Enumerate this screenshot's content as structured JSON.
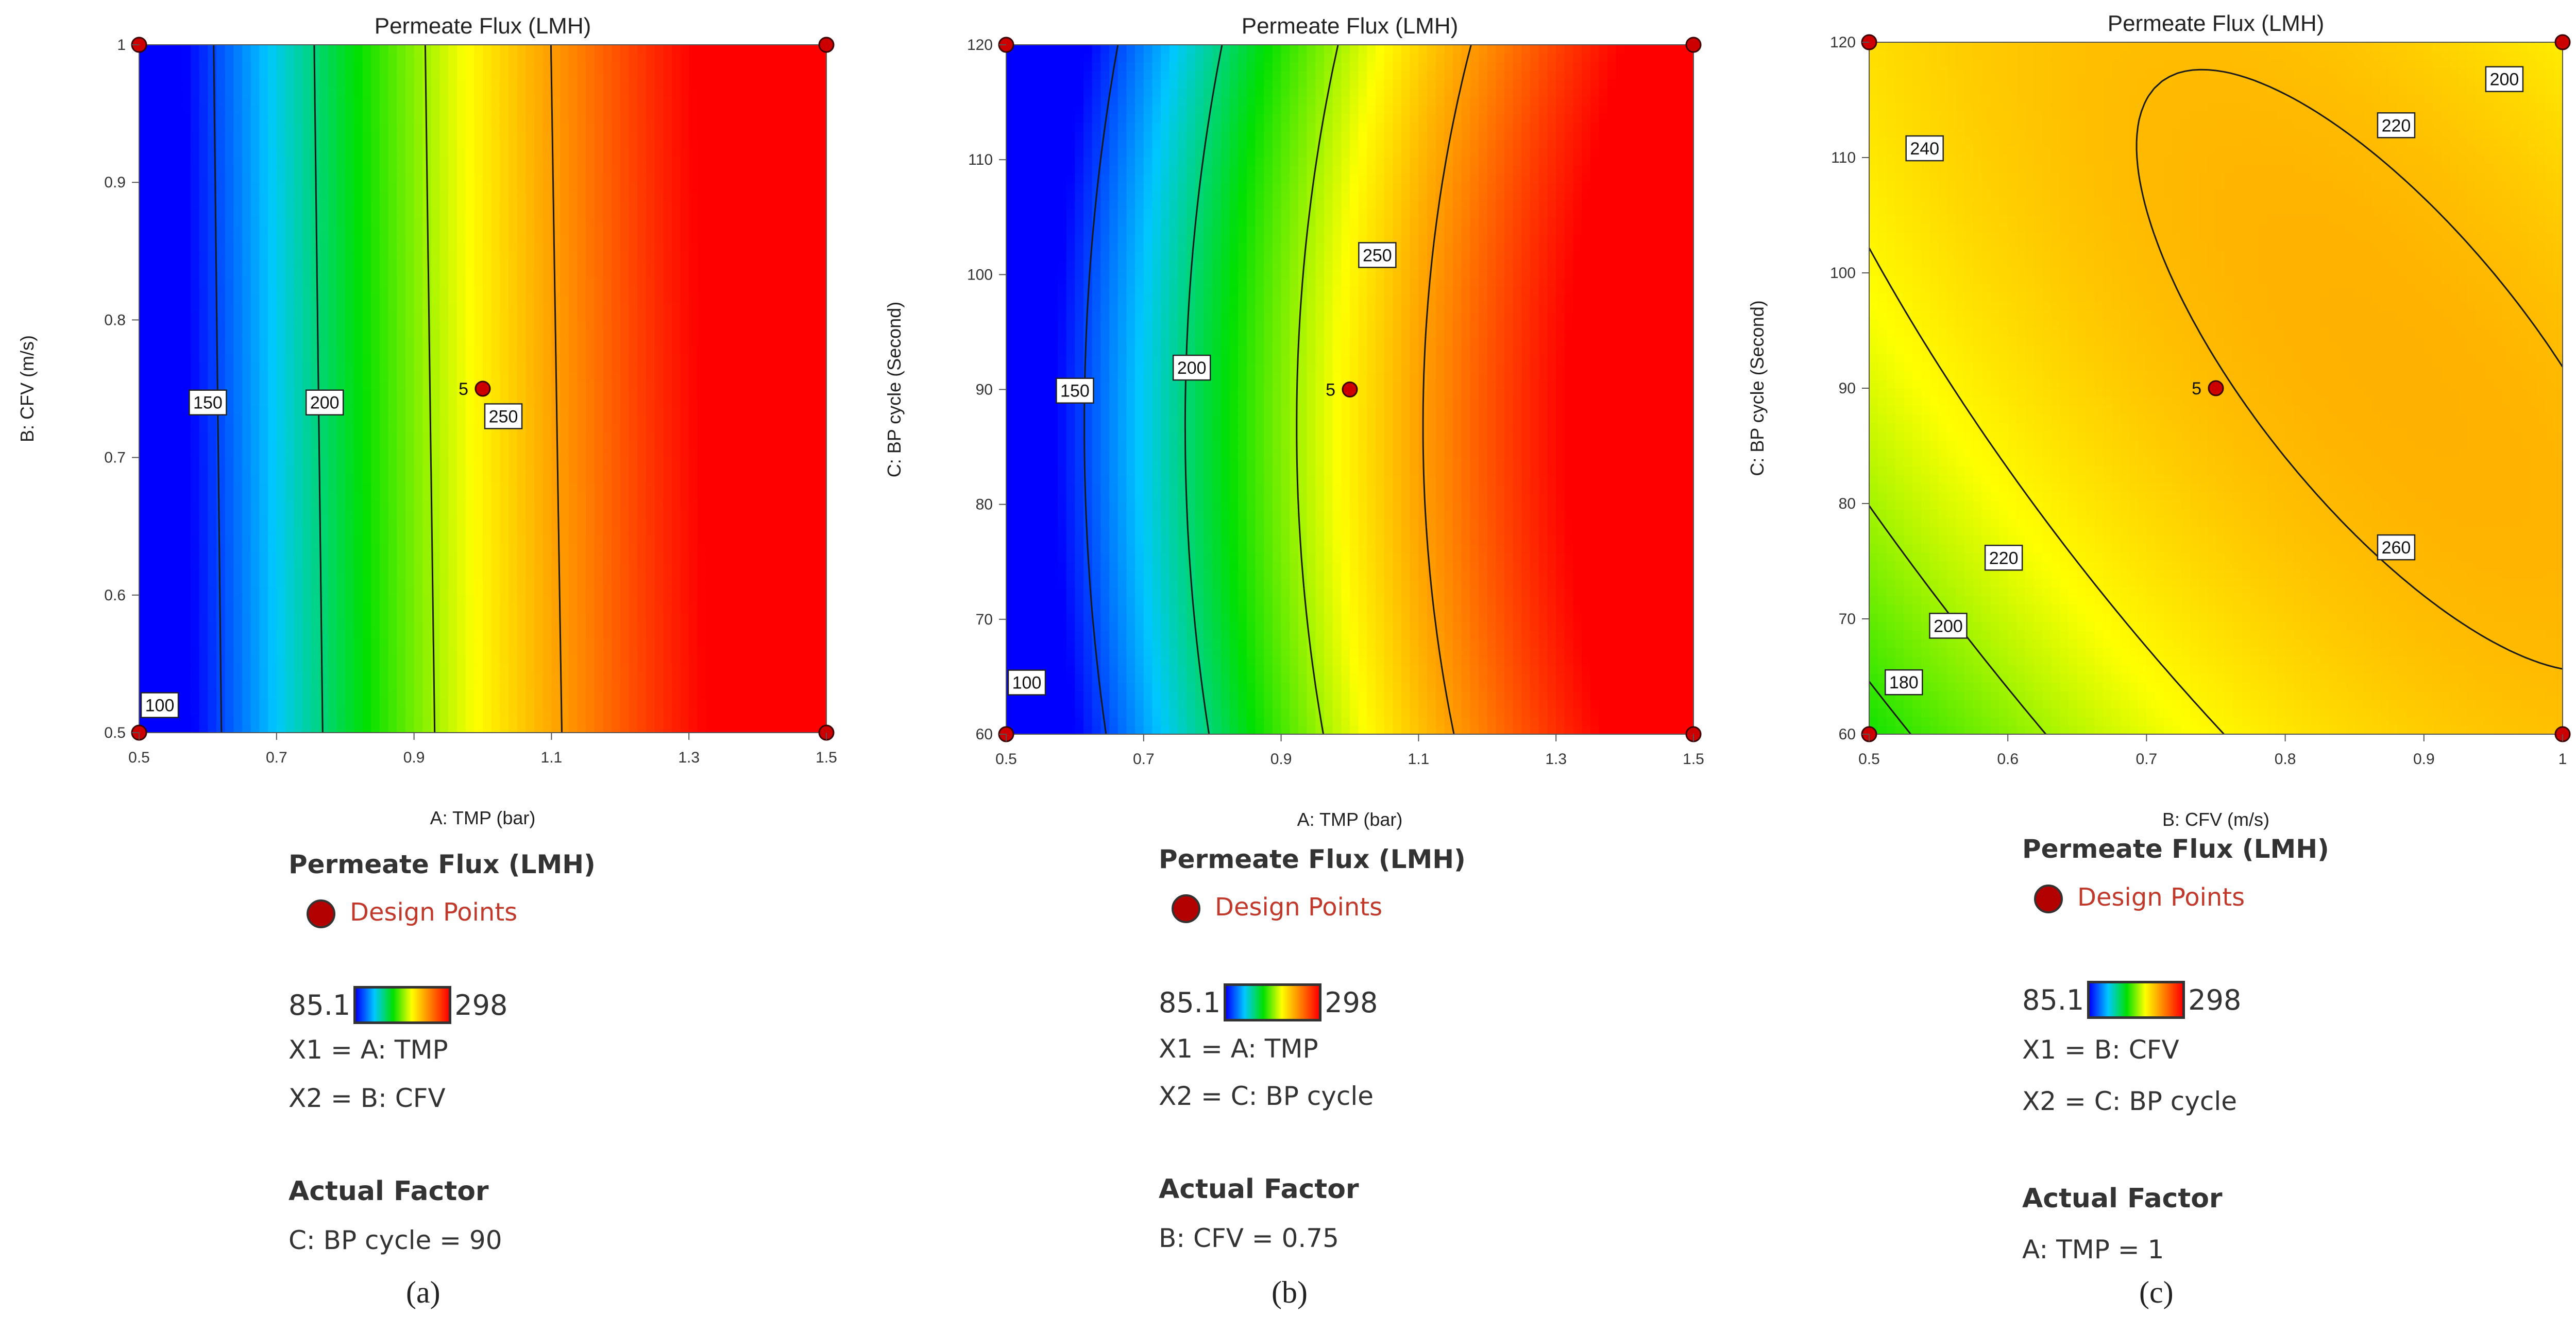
{
  "colorbar": {
    "min": 85.1,
    "max": 298,
    "min_label": "85.1",
    "max_label": "298"
  },
  "design_point_label": "5",
  "chart_data": [
    {
      "type": "heatmap",
      "subtype": "contour",
      "title": "Permeate Flux (LMH)",
      "xlabel": "A: TMP (bar)",
      "ylabel": "B: CFV (m/s)",
      "xlim": [
        0.5,
        1.5
      ],
      "ylim": [
        0.5,
        1
      ],
      "xticks": [
        "0.5",
        "0.7",
        "0.9",
        "1.1",
        "1.3",
        "1.5"
      ],
      "yticks": [
        "0.5",
        "0.6",
        "0.7",
        "0.8",
        "0.9",
        "1"
      ],
      "x_var": "A",
      "y_var": "B",
      "fixed": {
        "C": 90
      },
      "contour_levels": [
        {
          "value": 100,
          "label": "100",
          "label_at": [
            0.53,
            0.52
          ]
        },
        {
          "value": 150,
          "label": "150",
          "label_at": [
            0.6,
            0.74
          ]
        },
        {
          "value": 200,
          "label": "200",
          "label_at": [
            0.77,
            0.74
          ]
        },
        {
          "value": 250,
          "label": "250",
          "label_at": [
            1.03,
            0.73
          ]
        }
      ],
      "design_points": [
        {
          "x": 0.5,
          "y": 0.5
        },
        {
          "x": 1.5,
          "y": 0.5
        },
        {
          "x": 0.5,
          "y": 1
        },
        {
          "x": 1.5,
          "y": 1
        },
        {
          "x": 1.0,
          "y": 0.75,
          "label": "5"
        }
      ],
      "legend": {
        "title": "Permeate Flux (LMH)",
        "design_points": "Design Points",
        "x1": "X1 = A: TMP",
        "x2": "X2 = B: CFV",
        "actual_factor_title": "Actual Factor",
        "actual_factor": "C: BP cycle = 90"
      },
      "panel_label": "(a)"
    },
    {
      "type": "heatmap",
      "subtype": "contour",
      "title": "Permeate Flux (LMH)",
      "xlabel": "A: TMP (bar)",
      "ylabel": "C: BP cycle (Second)",
      "xlim": [
        0.5,
        1.5
      ],
      "ylim": [
        60,
        120
      ],
      "xticks": [
        "0.5",
        "0.7",
        "0.9",
        "1.1",
        "1.3",
        "1.5"
      ],
      "yticks": [
        "60",
        "70",
        "80",
        "90",
        "100",
        "110",
        "120"
      ],
      "x_var": "A",
      "y_var": "C",
      "fixed": {
        "B": 0.75
      },
      "contour_levels": [
        {
          "value": 100,
          "label": "100",
          "label_at": [
            0.53,
            64.5
          ]
        },
        {
          "value": 150,
          "label": "150",
          "label_at": [
            0.6,
            89.9
          ]
        },
        {
          "value": 200,
          "label": "200",
          "label_at": [
            0.77,
            91.9
          ]
        },
        {
          "value": 250,
          "label": "250",
          "label_at": [
            1.04,
            101.7
          ]
        }
      ],
      "design_points": [
        {
          "x": 0.5,
          "y": 60
        },
        {
          "x": 1.5,
          "y": 60
        },
        {
          "x": 0.5,
          "y": 120
        },
        {
          "x": 1.5,
          "y": 120
        },
        {
          "x": 1.0,
          "y": 90,
          "label": "5"
        }
      ],
      "legend": {
        "title": "Permeate Flux (LMH)",
        "design_points": "Design Points",
        "x1": "X1 = A: TMP",
        "x2": "X2 = C: BP cycle",
        "actual_factor_title": "Actual Factor",
        "actual_factor": "B: CFV = 0.75"
      },
      "panel_label": "(b)"
    },
    {
      "type": "heatmap",
      "subtype": "contour",
      "title": "Permeate Flux (LMH)",
      "xlabel": "B: CFV (m/s)",
      "ylabel": "C: BP cycle (Second)",
      "xlim": [
        0.5,
        1
      ],
      "ylim": [
        60,
        120
      ],
      "xticks": [
        "0.5",
        "0.6",
        "0.7",
        "0.8",
        "0.9",
        "1"
      ],
      "yticks": [
        "60",
        "70",
        "80",
        "90",
        "100",
        "110",
        "120"
      ],
      "x_var": "B",
      "y_var": "C",
      "fixed": {
        "A": 1
      },
      "contour_levels": [
        {
          "value": 180,
          "label": "180",
          "label_at": [
            0.525,
            64.5
          ]
        },
        {
          "value": 200,
          "label": "200",
          "label_at": [
            0.557,
            69.4
          ]
        },
        {
          "value": 200,
          "label": "200",
          "label_at": [
            0.958,
            116.8
          ]
        },
        {
          "value": 220,
          "label": "220",
          "label_at": [
            0.597,
            75.3
          ]
        },
        {
          "value": 220,
          "label": "220",
          "label_at": [
            0.88,
            112.8
          ]
        },
        {
          "value": 240,
          "label": "240",
          "label_at": [
            0.54,
            110.8
          ]
        },
        {
          "value": 260,
          "label": "260",
          "label_at": [
            0.88,
            76.2
          ]
        }
      ],
      "design_points": [
        {
          "x": 0.5,
          "y": 60
        },
        {
          "x": 1,
          "y": 60
        },
        {
          "x": 0.5,
          "y": 120
        },
        {
          "x": 1,
          "y": 120
        },
        {
          "x": 0.75,
          "y": 90,
          "label": "5"
        }
      ],
      "legend": {
        "title": "Permeate Flux (LMH)",
        "design_points": "Design Points",
        "x1": "X1 = B: CFV",
        "x2": "X2 = C: BP cycle",
        "actual_factor_title": "Actual Factor",
        "actual_factor": "A: TMP = 1"
      },
      "panel_label": "(c)"
    }
  ]
}
